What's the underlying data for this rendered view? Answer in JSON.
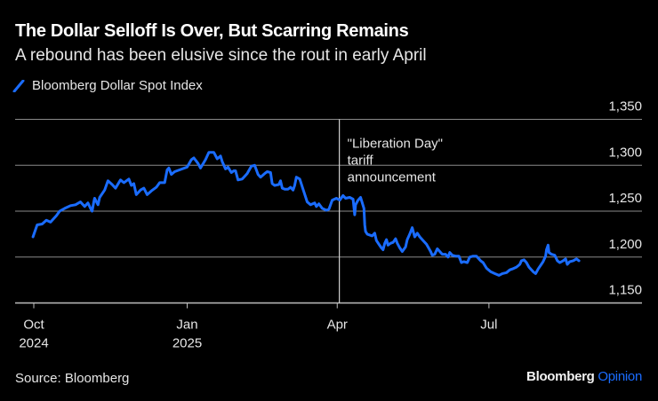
{
  "header": {
    "title": "The Dollar Selloff Is Over, But Scarring Remains",
    "subtitle": "A rebound has been elusive since the rout in early April"
  },
  "legend": {
    "icon": "diagonal-line-swatch",
    "label": "Bloomberg Dollar Spot Index"
  },
  "footer": {
    "source": "Source: Bloomberg",
    "brand_primary": "Bloomberg",
    "brand_secondary": "Opinion"
  },
  "colors": {
    "series": "#1a6cff",
    "brand_accent": "#1a6cff",
    "grid": "#8a8a8a",
    "background": "#000000"
  },
  "chart_data": {
    "type": "line",
    "title": "The Dollar Selloff Is Over, But Scarring Remains",
    "subtitle": "A rebound has been elusive since the rout in early April",
    "xlabel": "",
    "ylabel": "",
    "x_unit": "days since 2024-10-01",
    "ylim": [
      1150,
      1350
    ],
    "yticks": [
      {
        "value": 1350,
        "label": "1,350"
      },
      {
        "value": 1300,
        "label": "1,300"
      },
      {
        "value": 1250,
        "label": "1,250"
      },
      {
        "value": 1200,
        "label": "1,200"
      },
      {
        "value": 1150,
        "label": "1,150"
      }
    ],
    "xlim": [
      -11,
      365
    ],
    "xticks": [
      {
        "day": 0,
        "label": "Oct",
        "sublabel": "2024"
      },
      {
        "day": 92,
        "label": "Jan",
        "sublabel": "2025"
      },
      {
        "day": 182,
        "label": "Apr",
        "sublabel": ""
      },
      {
        "day": 273,
        "label": "Jul",
        "sublabel": ""
      }
    ],
    "grid": true,
    "y_axis_side": "right",
    "legend_position": "top-left",
    "annotation": {
      "day": 183,
      "lines": [
        "\"Liberation Day\"",
        "tariff",
        "announcement"
      ]
    },
    "series": [
      {
        "name": "Bloomberg Dollar Spot Index",
        "points": [
          [
            -0.5,
            1222
          ],
          [
            2,
            1235
          ],
          [
            5,
            1236
          ],
          [
            7.5,
            1240
          ],
          [
            10,
            1238
          ],
          [
            13.5,
            1245
          ],
          [
            15.5,
            1250
          ],
          [
            18.5,
            1253
          ],
          [
            22,
            1256
          ],
          [
            25,
            1257
          ],
          [
            28,
            1260
          ],
          [
            30.5,
            1255
          ],
          [
            32.5,
            1259
          ],
          [
            34,
            1253
          ],
          [
            35,
            1250
          ],
          [
            36,
            1260
          ],
          [
            36.5,
            1264
          ],
          [
            38.5,
            1257
          ],
          [
            39.5,
            1265
          ],
          [
            42.5,
            1273
          ],
          [
            44.5,
            1283
          ],
          [
            47,
            1279
          ],
          [
            49,
            1275
          ],
          [
            52,
            1284
          ],
          [
            54,
            1281
          ],
          [
            57,
            1285
          ],
          [
            58.5,
            1278
          ],
          [
            60,
            1280
          ],
          [
            61.5,
            1268
          ],
          [
            64,
            1273
          ],
          [
            66,
            1275
          ],
          [
            68,
            1268
          ],
          [
            70.5,
            1272
          ],
          [
            73.5,
            1276
          ],
          [
            75.5,
            1281
          ],
          [
            78.5,
            1281
          ],
          [
            80,
            1295
          ],
          [
            81,
            1297
          ],
          [
            82.5,
            1290
          ],
          [
            84.5,
            1293
          ],
          [
            89,
            1296
          ],
          [
            92,
            1298
          ],
          [
            94.5,
            1306
          ],
          [
            96,
            1308
          ],
          [
            98.5,
            1302
          ],
          [
            100,
            1297
          ],
          [
            103,
            1306
          ],
          [
            105,
            1314
          ],
          [
            108,
            1314
          ],
          [
            110,
            1307
          ],
          [
            112,
            1310
          ],
          [
            113,
            1304
          ],
          [
            115,
            1296
          ],
          [
            116.5,
            1298
          ],
          [
            118.5,
            1292
          ],
          [
            120,
            1294
          ],
          [
            121,
            1294
          ],
          [
            122.5,
            1284
          ],
          [
            125,
            1285
          ],
          [
            126.5,
            1288
          ],
          [
            128,
            1291
          ],
          [
            130.5,
            1299
          ],
          [
            132.5,
            1300
          ],
          [
            134.5,
            1290
          ],
          [
            136,
            1287
          ],
          [
            138.5,
            1291
          ],
          [
            140,
            1293
          ],
          [
            142,
            1292
          ],
          [
            143,
            1280
          ],
          [
            144.5,
            1278
          ],
          [
            147,
            1279
          ],
          [
            148,
            1283
          ],
          [
            149,
            1275
          ],
          [
            150.5,
            1274
          ],
          [
            152.5,
            1274
          ],
          [
            154,
            1276
          ],
          [
            155.5,
            1273
          ],
          [
            156.5,
            1278
          ],
          [
            157.5,
            1287
          ],
          [
            159.5,
            1285
          ],
          [
            162,
            1271
          ],
          [
            164,
            1260
          ],
          [
            166,
            1257
          ],
          [
            168.5,
            1259
          ],
          [
            169.5,
            1255
          ],
          [
            171,
            1258
          ],
          [
            173,
            1253
          ],
          [
            175.5,
            1251
          ],
          [
            177,
            1252
          ],
          [
            179,
            1262
          ],
          [
            181.5,
            1264
          ],
          [
            183.5,
            1262
          ],
          [
            185.5,
            1267
          ],
          [
            187,
            1264
          ],
          [
            189.5,
            1265
          ],
          [
            191.5,
            1263
          ],
          [
            192.5,
            1246
          ],
          [
            193,
            1257
          ],
          [
            194.5,
            1262
          ],
          [
            196,
            1265
          ],
          [
            197,
            1259
          ],
          [
            198,
            1253
          ],
          [
            198.5,
            1235
          ],
          [
            199,
            1228
          ],
          [
            200,
            1225
          ],
          [
            201.5,
            1224
          ],
          [
            203,
            1223
          ],
          [
            204.5,
            1226
          ],
          [
            205.5,
            1218
          ],
          [
            207,
            1214
          ],
          [
            208.5,
            1210
          ],
          [
            209.5,
            1208
          ],
          [
            210.5,
            1215
          ],
          [
            211.5,
            1219
          ],
          [
            212.5,
            1213
          ],
          [
            214,
            1215
          ],
          [
            215.5,
            1216
          ],
          [
            217,
            1220
          ],
          [
            218,
            1215
          ],
          [
            219.5,
            1210
          ],
          [
            221,
            1206
          ],
          [
            223,
            1211
          ],
          [
            224,
            1219
          ],
          [
            225.5,
            1225
          ],
          [
            227,
            1232
          ],
          [
            228.5,
            1222
          ],
          [
            230,
            1226
          ],
          [
            231.5,
            1222
          ],
          [
            233.5,
            1218
          ],
          [
            235.5,
            1214
          ],
          [
            236.5,
            1211
          ],
          [
            238,
            1206
          ],
          [
            239,
            1202
          ],
          [
            240.5,
            1203
          ],
          [
            242,
            1209
          ],
          [
            243.5,
            1206
          ],
          [
            245,
            1203
          ],
          [
            247,
            1203
          ],
          [
            248.5,
            1200
          ],
          [
            249.5,
            1205
          ],
          [
            251,
            1202
          ],
          [
            253,
            1201
          ],
          [
            255,
            1201
          ],
          [
            256.5,
            1194
          ],
          [
            258,
            1195
          ],
          [
            260,
            1194
          ],
          [
            261.5,
            1200
          ],
          [
            263.5,
            1201
          ],
          [
            265.5,
            1201
          ],
          [
            268,
            1196
          ],
          [
            269.5,
            1194
          ],
          [
            271.5,
            1188
          ],
          [
            274,
            1184
          ],
          [
            276.5,
            1182
          ],
          [
            279,
            1180
          ],
          [
            281,
            1182
          ],
          [
            283.5,
            1183
          ],
          [
            285.5,
            1186
          ],
          [
            287,
            1187
          ],
          [
            289.5,
            1189
          ],
          [
            291.5,
            1192
          ],
          [
            292.5,
            1196
          ],
          [
            294,
            1197
          ],
          [
            295.5,
            1194
          ],
          [
            297,
            1189
          ],
          [
            299.5,
            1184
          ],
          [
            301,
            1182
          ],
          [
            302.5,
            1187
          ],
          [
            304,
            1191
          ],
          [
            305.5,
            1195
          ],
          [
            307,
            1201
          ],
          [
            307.5,
            1208
          ],
          [
            308.5,
            1213
          ],
          [
            309,
            1205
          ],
          [
            310.5,
            1203
          ],
          [
            312.5,
            1202
          ],
          [
            314,
            1196
          ],
          [
            315.5,
            1194
          ],
          [
            317.5,
            1196
          ],
          [
            319,
            1198
          ],
          [
            320,
            1192
          ],
          [
            321.5,
            1195
          ],
          [
            323.5,
            1196
          ],
          [
            325.5,
            1198
          ],
          [
            327,
            1196
          ]
        ]
      }
    ]
  }
}
